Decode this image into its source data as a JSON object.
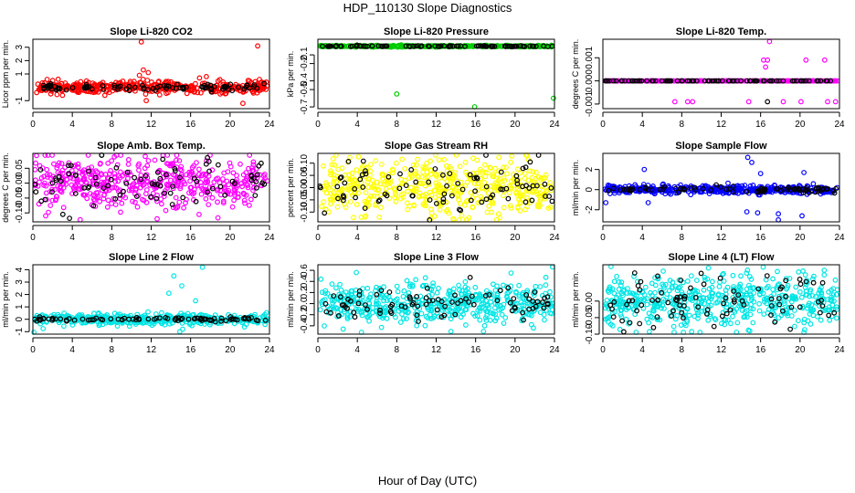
{
  "title": "HDP_110130  Slope Diagnostics",
  "xlabel": "Hour of Day (UTC)",
  "chart_data": [
    {
      "type": "scatter",
      "title": "Slope Li-820 CO2",
      "ylabel": "Licor ppm per min.",
      "xlim": [
        0,
        24
      ],
      "ylim": [
        -1.6,
        3.6
      ],
      "xticks": [
        0,
        4,
        8,
        12,
        16,
        20,
        24
      ],
      "xtick_labels": [
        "0",
        "4",
        "8",
        "12",
        "16",
        "20",
        "24"
      ],
      "yticks": [
        -1,
        1,
        2,
        3
      ],
      "ytick_labels": [
        "-1",
        "1",
        "2",
        "3"
      ],
      "series": [
        {
          "name": "red",
          "color": "#ff0000",
          "n": 420,
          "center": 0.0,
          "noise": 0.22,
          "outliers": [
            [
              11.0,
              3.4
            ],
            [
              22.8,
              3.1
            ],
            [
              11.2,
              1.3
            ],
            [
              11.7,
              1.1
            ],
            [
              10.8,
              0.9
            ],
            [
              17.6,
              0.8
            ],
            [
              16.9,
              0.7
            ],
            [
              11.5,
              -1.0
            ],
            [
              21.3,
              -1.2
            ],
            [
              7.3,
              -0.6
            ],
            [
              3.0,
              -0.6
            ]
          ]
        },
        {
          "name": "black",
          "color": "#000000",
          "n": 95,
          "center": 0.0,
          "noise": 0.12,
          "outliers": []
        }
      ]
    },
    {
      "type": "scatter",
      "title": "Slope Li-820 Pressure",
      "ylabel": "kPa per min.",
      "xlim": [
        0,
        24
      ],
      "ylim": [
        -0.72,
        0.08
      ],
      "xticks": [
        0,
        4,
        8,
        12,
        16,
        20,
        24
      ],
      "xtick_labels": [
        "0",
        "4",
        "8",
        "12",
        "16",
        "20",
        "24"
      ],
      "yticks": [
        -0.1,
        -0.2,
        -0.4,
        -0.5,
        -0.7
      ],
      "ytick_labels": [
        "-0.1",
        "-0.2",
        "-0.4",
        "-0.5",
        "-0.7"
      ],
      "series": [
        {
          "name": "green",
          "color": "#00cc00",
          "n": 400,
          "center": 0.0,
          "noise": 0.004,
          "outliers": [
            [
              8.0,
              -0.55
            ],
            [
              15.9,
              -0.7
            ],
            [
              23.9,
              -0.6
            ]
          ]
        },
        {
          "name": "black",
          "color": "#000000",
          "n": 90,
          "center": 0.0,
          "noise": 0.003,
          "outliers": []
        }
      ]
    },
    {
      "type": "scatter",
      "title": "Slope Li-820 Temp.",
      "ylabel": "degrees C per min.",
      "xlim": [
        0,
        24
      ],
      "ylim": [
        -0.0012,
        0.0018
      ],
      "xticks": [
        0,
        4,
        8,
        12,
        16,
        20,
        24
      ],
      "xtick_labels": [
        "0",
        "4",
        "8",
        "12",
        "16",
        "20",
        "24"
      ],
      "yticks": [
        -0.001,
        0.0,
        0.001
      ],
      "ytick_labels": [
        "-0.001",
        "0.000",
        "0.001"
      ],
      "series": [
        {
          "name": "magenta",
          "color": "#ff00ff",
          "n": 300,
          "center": 0.0,
          "noise": 0.0,
          "outliers": [
            [
              16.9,
              0.0017
            ],
            [
              16.3,
              0.0009
            ],
            [
              16.7,
              0.0009
            ],
            [
              20.6,
              0.0009
            ],
            [
              22.5,
              0.0009
            ],
            [
              16.5,
              0.0006
            ],
            [
              7.3,
              -0.0009
            ],
            [
              8.6,
              -0.0009
            ],
            [
              9.1,
              -0.0009
            ],
            [
              14.8,
              -0.0009
            ],
            [
              18.3,
              -0.0009
            ],
            [
              20.1,
              -0.0009
            ],
            [
              22.8,
              -0.0009
            ],
            [
              23.6,
              -0.0009
            ]
          ]
        },
        {
          "name": "black",
          "color": "#000000",
          "n": 90,
          "center": 0.0,
          "noise": 0.0,
          "outliers": [
            [
              16.7,
              -0.0009
            ]
          ]
        }
      ]
    },
    {
      "type": "scatter",
      "title": "Slope Amb. Box Temp.",
      "ylabel": "degrees C per min.",
      "xlim": [
        0,
        24
      ],
      "ylim": [
        -0.13,
        0.1
      ],
      "xticks": [
        0,
        4,
        8,
        12,
        16,
        20,
        24
      ],
      "xtick_labels": [
        "0",
        "4",
        "8",
        "12",
        "16",
        "20",
        "24"
      ],
      "yticks": [
        -0.1,
        -0.05,
        0.0,
        0.05
      ],
      "ytick_labels": [
        "-0.10",
        "-0.05",
        "0.00",
        "0.05"
      ],
      "series": [
        {
          "name": "magenta",
          "color": "#ff00ff",
          "n": 480,
          "center": 0.0,
          "noise": 0.045,
          "outliers": [
            [
              11.4,
              0.09
            ],
            [
              1.3,
              -0.11
            ],
            [
              12.6,
              -0.12
            ]
          ]
        },
        {
          "name": "black",
          "color": "#000000",
          "n": 85,
          "center": 0.0,
          "noise": 0.04,
          "outliers": []
        }
      ]
    },
    {
      "type": "scatter",
      "title": "Slope Gas Stream RH",
      "ylabel": "percent per min.",
      "xlim": [
        0,
        24
      ],
      "ylim": [
        -0.14,
        0.14
      ],
      "xticks": [
        0,
        4,
        8,
        12,
        16,
        20,
        24
      ],
      "xtick_labels": [
        "0",
        "4",
        "8",
        "12",
        "16",
        "20",
        "24"
      ],
      "yticks": [
        -0.1,
        -0.05,
        0.0,
        0.05,
        0.1
      ],
      "ytick_labels": [
        "-0.10",
        "-0.05",
        "0.00",
        "0.05",
        "0.10"
      ],
      "series": [
        {
          "name": "yellow",
          "color": "#ffff00",
          "n": 500,
          "center": 0.0,
          "noise": 0.055,
          "outliers": []
        },
        {
          "name": "black",
          "color": "#000000",
          "n": 85,
          "center": 0.0,
          "noise": 0.055,
          "outliers": []
        }
      ]
    },
    {
      "type": "scatter",
      "title": "Slope Sample Flow",
      "ylabel": "ml/min per min.",
      "xlim": [
        0,
        24
      ],
      "ylim": [
        -3.2,
        3.6
      ],
      "xticks": [
        0,
        4,
        8,
        12,
        16,
        20,
        24
      ],
      "xtick_labels": [
        "0",
        "4",
        "8",
        "12",
        "16",
        "20",
        "24"
      ],
      "yticks": [
        -2,
        0,
        2
      ],
      "ytick_labels": [
        "-2",
        "0",
        "2"
      ],
      "series": [
        {
          "name": "blue",
          "color": "#0000ff",
          "n": 420,
          "center": 0.0,
          "noise": 0.2,
          "outliers": [
            [
              14.7,
              3.2
            ],
            [
              15.1,
              2.7
            ],
            [
              4.2,
              2.0
            ],
            [
              20.4,
              1.7
            ],
            [
              16.0,
              1.6
            ],
            [
              0.3,
              -1.3
            ],
            [
              4.6,
              -1.3
            ],
            [
              14.6,
              -2.2
            ],
            [
              15.7,
              -2.3
            ],
            [
              17.8,
              -2.4
            ],
            [
              20.2,
              -2.6
            ],
            [
              17.8,
              -3.0
            ]
          ]
        },
        {
          "name": "black",
          "color": "#000000",
          "n": 85,
          "center": 0.0,
          "noise": 0.15,
          "outliers": []
        }
      ]
    },
    {
      "type": "scatter",
      "title": "Slope Line 2 Flow",
      "ylabel": "ml/min per min.",
      "xlim": [
        0,
        24
      ],
      "ylim": [
        -1.2,
        4.4
      ],
      "xticks": [
        0,
        4,
        8,
        12,
        16,
        20,
        24
      ],
      "xtick_labels": [
        "0",
        "4",
        "8",
        "12",
        "16",
        "20",
        "24"
      ],
      "yticks": [
        -1,
        0,
        1,
        2,
        3,
        4
      ],
      "ytick_labels": [
        "-1",
        "0",
        "1",
        "2",
        "3",
        "4"
      ],
      "series": [
        {
          "name": "cyan",
          "color": "#00e5e5",
          "n": 420,
          "center": 0.0,
          "noise": 0.22,
          "outliers": [
            [
              17.2,
              4.2
            ],
            [
              14.3,
              3.5
            ],
            [
              15.1,
              2.7
            ],
            [
              13.8,
              2.1
            ],
            [
              16.5,
              1.5
            ],
            [
              15.2,
              -0.8
            ],
            [
              14.9,
              -1.0
            ],
            [
              0.1,
              -1.1
            ]
          ]
        },
        {
          "name": "black",
          "color": "#000000",
          "n": 85,
          "center": 0.0,
          "noise": 0.08,
          "outliers": []
        }
      ]
    },
    {
      "type": "scatter",
      "title": "Slope Line 3 Flow",
      "ylabel": "ml/min per min.",
      "xlim": [
        0,
        24
      ],
      "ylim": [
        -0.55,
        0.7
      ],
      "xticks": [
        0,
        4,
        8,
        12,
        16,
        20,
        24
      ],
      "xtick_labels": [
        "0",
        "4",
        "8",
        "12",
        "16",
        "20",
        "24"
      ],
      "yticks": [
        -0.4,
        -0.2,
        0.0,
        0.2,
        0.4,
        0.6
      ],
      "ytick_labels": [
        "-0.4",
        "-0.2",
        "0.0",
        "0.2",
        "0.4",
        "0.6"
      ],
      "series": [
        {
          "name": "cyan",
          "color": "#00e5e5",
          "n": 500,
          "center": 0.0,
          "noise": 0.17,
          "outliers": [
            [
              23.8,
              0.66
            ],
            [
              3.9,
              0.56
            ],
            [
              19.6,
              0.55
            ],
            [
              13.5,
              -0.5
            ],
            [
              16.8,
              -0.5
            ]
          ]
        },
        {
          "name": "black",
          "color": "#000000",
          "n": 85,
          "center": 0.0,
          "noise": 0.15,
          "outliers": []
        }
      ]
    },
    {
      "type": "scatter",
      "title": "Slope Line 4 (LT) Flow",
      "ylabel": "ml/min per min.",
      "xlim": [
        0,
        24
      ],
      "ylim": [
        -0.1,
        0.11
      ],
      "xticks": [
        0,
        4,
        8,
        12,
        16,
        20,
        24
      ],
      "xtick_labels": [
        "0",
        "4",
        "8",
        "12",
        "16",
        "20",
        "24"
      ],
      "yticks": [
        -0.1,
        -0.05,
        0.0
      ],
      "ytick_labels": [
        "-0.10",
        "-0.05",
        "0.00"
      ],
      "series": [
        {
          "name": "cyan",
          "color": "#00e5e5",
          "n": 520,
          "center": 0.0,
          "noise": 0.038,
          "outliers": [
            [
              20.4,
              -0.1
            ],
            [
              14.9,
              -0.09
            ],
            [
              10.7,
              0.1
            ]
          ]
        },
        {
          "name": "black",
          "color": "#000000",
          "n": 85,
          "center": 0.0,
          "noise": 0.035,
          "outliers": []
        }
      ]
    }
  ]
}
